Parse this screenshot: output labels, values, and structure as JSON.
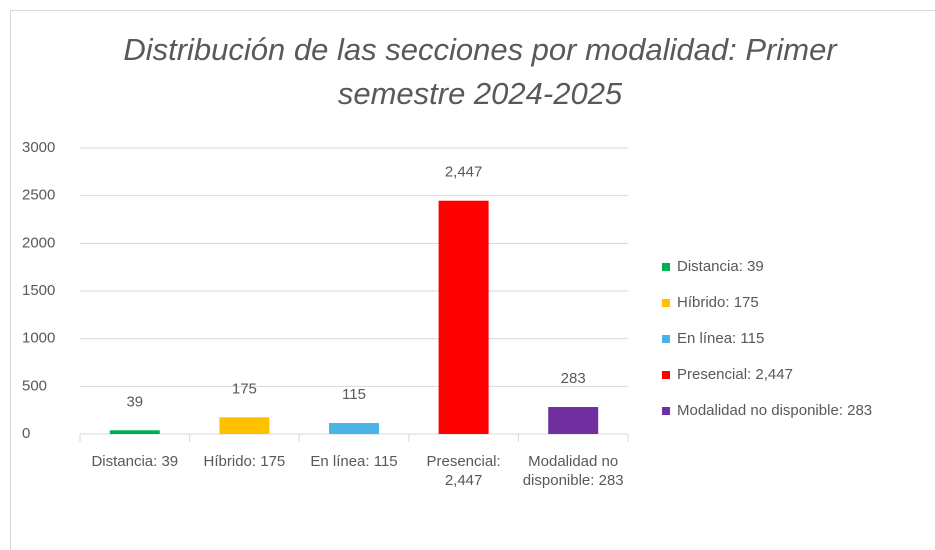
{
  "chart_data": {
    "type": "bar",
    "title": "Distribución de las secciones por modalidad: Primer semestre 2024-2025",
    "categories": [
      "Distancia: 39",
      "Híbrido: 175",
      "En línea: 115",
      "Presencial: 2,447",
      "Modalidad no disponible: 283"
    ],
    "values": [
      39,
      175,
      115,
      2447,
      283
    ],
    "value_labels": [
      "39",
      "175",
      "115",
      "2,447",
      "283"
    ],
    "colors": [
      "#00b050",
      "#ffc000",
      "#4ab4e6",
      "#ff0000",
      "#7030a0"
    ],
    "ylim": [
      0,
      3000
    ],
    "yticks": [
      0,
      500,
      1000,
      1500,
      2000,
      2500,
      3000
    ],
    "grid": true,
    "legend": "right"
  }
}
